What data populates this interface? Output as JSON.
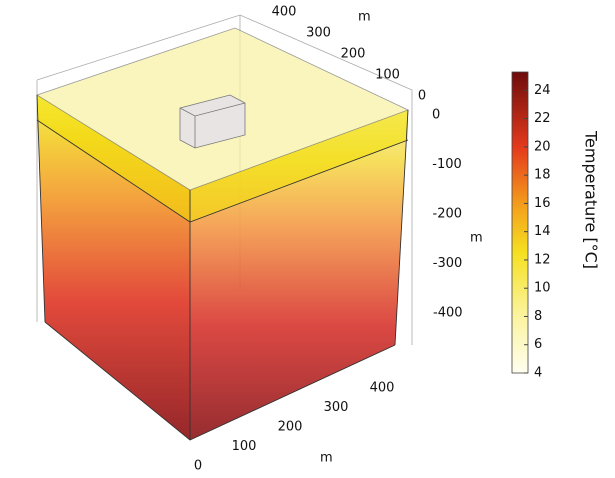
{
  "axes": {
    "x_ticks": [
      0,
      100,
      200,
      300,
      400
    ],
    "x_unit": "m",
    "y_ticks": [
      0,
      100,
      200,
      300,
      400
    ],
    "y_unit": "m",
    "z_ticks": [
      0,
      -100,
      -200,
      -300,
      -400
    ],
    "z_unit": "m"
  },
  "colorbar": {
    "title": "Temperature [°C]",
    "range": [
      4,
      25.3
    ],
    "ticks": [
      4,
      6,
      8,
      10,
      12,
      14,
      16,
      18,
      20,
      22,
      24
    ]
  }
}
